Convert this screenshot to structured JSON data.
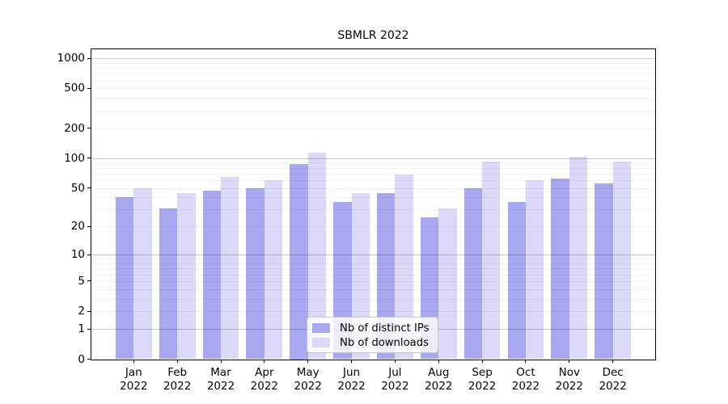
{
  "chart_data": {
    "type": "bar",
    "title": "SBMLR 2022",
    "year": "2022",
    "categories": [
      "Jan",
      "Feb",
      "Mar",
      "Apr",
      "May",
      "Jun",
      "Jul",
      "Aug",
      "Sep",
      "Oct",
      "Nov",
      "Dec"
    ],
    "series": [
      {
        "name": "Nb of distinct IPs",
        "color": "#a8a8f0",
        "values": [
          40,
          31,
          47,
          50,
          88,
          36,
          44,
          25,
          50,
          36,
          62,
          56
        ]
      },
      {
        "name": "Nb of downloads",
        "color": "#dadaf8",
        "values": [
          50,
          44,
          65,
          60,
          114,
          44,
          69,
          31,
          92,
          60,
          104,
          92
        ]
      }
    ],
    "xlabel": "",
    "ylabel": "",
    "yscale": "log1p",
    "yticks": [
      0,
      1,
      2,
      5,
      10,
      20,
      50,
      100,
      200,
      500,
      1000
    ],
    "ylim": [
      0,
      1230
    ],
    "grid": true,
    "legend_position": "lower center"
  }
}
